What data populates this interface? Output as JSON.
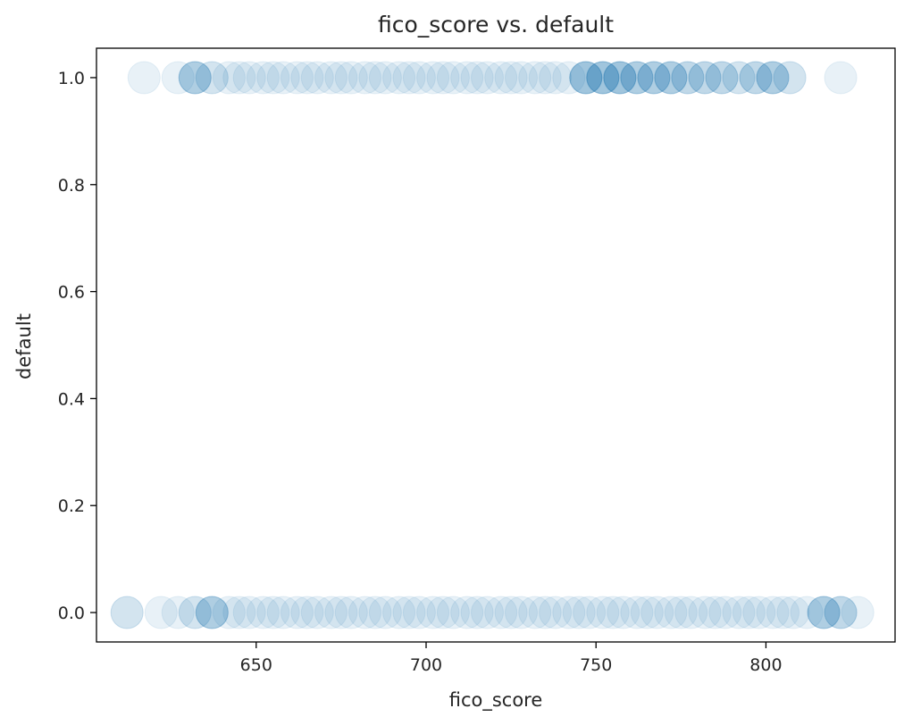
{
  "chart_data": {
    "type": "scatter",
    "title": "fico_score vs. default",
    "xlabel": "fico_score",
    "ylabel": "default",
    "xlim": [
      603,
      838
    ],
    "ylim": [
      -0.055,
      1.055
    ],
    "x_ticks": [
      650,
      700,
      750,
      800
    ],
    "x_tick_labels": [
      "650",
      "700",
      "750",
      "800"
    ],
    "y_ticks": [
      0.0,
      0.2,
      0.4,
      0.6,
      0.8,
      1.0
    ],
    "y_tick_labels": [
      "0.0",
      "0.2",
      "0.4",
      "0.6",
      "0.8",
      "1.0"
    ],
    "grid": false,
    "marker": {
      "color": "#1f77b4",
      "alpha": 0.1,
      "shape": "circle"
    },
    "series": [
      {
        "values": [
          {
            "x": 612,
            "y": 0
          },
          {
            "x": 612,
            "y": 0
          },
          {
            "x": 622,
            "y": 0
          },
          {
            "x": 627,
            "y": 0
          },
          {
            "x": 632,
            "y": 0
          },
          {
            "x": 632,
            "y": 0
          },
          {
            "x": 637,
            "y": 0
          },
          {
            "x": 637,
            "y": 0
          },
          {
            "x": 637,
            "y": 0
          },
          {
            "x": 637,
            "y": 0
          },
          {
            "x": 642,
            "y": 0
          },
          {
            "x": 645,
            "y": 0
          },
          {
            "x": 648,
            "y": 0
          },
          {
            "x": 652,
            "y": 0
          },
          {
            "x": 655,
            "y": 0
          },
          {
            "x": 658,
            "y": 0
          },
          {
            "x": 662,
            "y": 0
          },
          {
            "x": 665,
            "y": 0
          },
          {
            "x": 668,
            "y": 0
          },
          {
            "x": 672,
            "y": 0
          },
          {
            "x": 675,
            "y": 0
          },
          {
            "x": 678,
            "y": 0
          },
          {
            "x": 682,
            "y": 0
          },
          {
            "x": 685,
            "y": 0
          },
          {
            "x": 688,
            "y": 0
          },
          {
            "x": 692,
            "y": 0
          },
          {
            "x": 695,
            "y": 0
          },
          {
            "x": 698,
            "y": 0
          },
          {
            "x": 702,
            "y": 0
          },
          {
            "x": 705,
            "y": 0
          },
          {
            "x": 708,
            "y": 0
          },
          {
            "x": 712,
            "y": 0
          },
          {
            "x": 715,
            "y": 0
          },
          {
            "x": 718,
            "y": 0
          },
          {
            "x": 722,
            "y": 0
          },
          {
            "x": 725,
            "y": 0
          },
          {
            "x": 728,
            "y": 0
          },
          {
            "x": 732,
            "y": 0
          },
          {
            "x": 735,
            "y": 0
          },
          {
            "x": 738,
            "y": 0
          },
          {
            "x": 742,
            "y": 0
          },
          {
            "x": 745,
            "y": 0
          },
          {
            "x": 748,
            "y": 0
          },
          {
            "x": 752,
            "y": 0
          },
          {
            "x": 755,
            "y": 0
          },
          {
            "x": 758,
            "y": 0
          },
          {
            "x": 762,
            "y": 0
          },
          {
            "x": 765,
            "y": 0
          },
          {
            "x": 768,
            "y": 0
          },
          {
            "x": 772,
            "y": 0
          },
          {
            "x": 775,
            "y": 0
          },
          {
            "x": 778,
            "y": 0
          },
          {
            "x": 782,
            "y": 0
          },
          {
            "x": 785,
            "y": 0
          },
          {
            "x": 788,
            "y": 0
          },
          {
            "x": 792,
            "y": 0
          },
          {
            "x": 795,
            "y": 0
          },
          {
            "x": 798,
            "y": 0
          },
          {
            "x": 802,
            "y": 0
          },
          {
            "x": 805,
            "y": 0
          },
          {
            "x": 808,
            "y": 0
          },
          {
            "x": 812,
            "y": 0
          },
          {
            "x": 817,
            "y": 0
          },
          {
            "x": 817,
            "y": 0
          },
          {
            "x": 817,
            "y": 0
          },
          {
            "x": 817,
            "y": 0
          },
          {
            "x": 822,
            "y": 0
          },
          {
            "x": 822,
            "y": 0
          },
          {
            "x": 822,
            "y": 0
          },
          {
            "x": 827,
            "y": 0
          },
          {
            "x": 617,
            "y": 1
          },
          {
            "x": 627,
            "y": 1
          },
          {
            "x": 632,
            "y": 1
          },
          {
            "x": 632,
            "y": 1
          },
          {
            "x": 632,
            "y": 1
          },
          {
            "x": 632,
            "y": 1
          },
          {
            "x": 637,
            "y": 1
          },
          {
            "x": 637,
            "y": 1
          },
          {
            "x": 642,
            "y": 1
          },
          {
            "x": 645,
            "y": 1
          },
          {
            "x": 648,
            "y": 1
          },
          {
            "x": 652,
            "y": 1
          },
          {
            "x": 655,
            "y": 1
          },
          {
            "x": 658,
            "y": 1
          },
          {
            "x": 662,
            "y": 1
          },
          {
            "x": 665,
            "y": 1
          },
          {
            "x": 668,
            "y": 1
          },
          {
            "x": 672,
            "y": 1
          },
          {
            "x": 675,
            "y": 1
          },
          {
            "x": 678,
            "y": 1
          },
          {
            "x": 682,
            "y": 1
          },
          {
            "x": 685,
            "y": 1
          },
          {
            "x": 688,
            "y": 1
          },
          {
            "x": 692,
            "y": 1
          },
          {
            "x": 695,
            "y": 1
          },
          {
            "x": 698,
            "y": 1
          },
          {
            "x": 702,
            "y": 1
          },
          {
            "x": 705,
            "y": 1
          },
          {
            "x": 708,
            "y": 1
          },
          {
            "x": 712,
            "y": 1
          },
          {
            "x": 715,
            "y": 1
          },
          {
            "x": 718,
            "y": 1
          },
          {
            "x": 722,
            "y": 1
          },
          {
            "x": 725,
            "y": 1
          },
          {
            "x": 728,
            "y": 1
          },
          {
            "x": 732,
            "y": 1
          },
          {
            "x": 735,
            "y": 1
          },
          {
            "x": 738,
            "y": 1
          },
          {
            "x": 742,
            "y": 1
          },
          {
            "x": 747,
            "y": 1
          },
          {
            "x": 747,
            "y": 1
          },
          {
            "x": 747,
            "y": 1
          },
          {
            "x": 747,
            "y": 1
          },
          {
            "x": 747,
            "y": 1
          },
          {
            "x": 752,
            "y": 1
          },
          {
            "x": 752,
            "y": 1
          },
          {
            "x": 752,
            "y": 1
          },
          {
            "x": 752,
            "y": 1
          },
          {
            "x": 752,
            "y": 1
          },
          {
            "x": 757,
            "y": 1
          },
          {
            "x": 757,
            "y": 1
          },
          {
            "x": 757,
            "y": 1
          },
          {
            "x": 757,
            "y": 1
          },
          {
            "x": 757,
            "y": 1
          },
          {
            "x": 762,
            "y": 1
          },
          {
            "x": 762,
            "y": 1
          },
          {
            "x": 762,
            "y": 1
          },
          {
            "x": 762,
            "y": 1
          },
          {
            "x": 767,
            "y": 1
          },
          {
            "x": 767,
            "y": 1
          },
          {
            "x": 767,
            "y": 1
          },
          {
            "x": 767,
            "y": 1
          },
          {
            "x": 772,
            "y": 1
          },
          {
            "x": 772,
            "y": 1
          },
          {
            "x": 772,
            "y": 1
          },
          {
            "x": 772,
            "y": 1
          },
          {
            "x": 777,
            "y": 1
          },
          {
            "x": 777,
            "y": 1
          },
          {
            "x": 777,
            "y": 1
          },
          {
            "x": 782,
            "y": 1
          },
          {
            "x": 782,
            "y": 1
          },
          {
            "x": 782,
            "y": 1
          },
          {
            "x": 787,
            "y": 1
          },
          {
            "x": 787,
            "y": 1
          },
          {
            "x": 787,
            "y": 1
          },
          {
            "x": 792,
            "y": 1
          },
          {
            "x": 792,
            "y": 1
          },
          {
            "x": 797,
            "y": 1
          },
          {
            "x": 797,
            "y": 1
          },
          {
            "x": 797,
            "y": 1
          },
          {
            "x": 802,
            "y": 1
          },
          {
            "x": 802,
            "y": 1
          },
          {
            "x": 802,
            "y": 1
          },
          {
            "x": 802,
            "y": 1
          },
          {
            "x": 807,
            "y": 1
          },
          {
            "x": 807,
            "y": 1
          },
          {
            "x": 822,
            "y": 1
          }
        ]
      }
    ]
  }
}
